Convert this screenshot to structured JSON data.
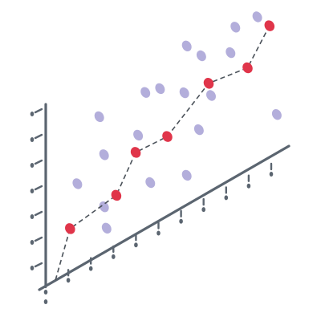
{
  "colors": {
    "axis": "#5b6570",
    "trend": "#e0354a",
    "scatter": "#b3aedb",
    "dash": "#4b525a"
  },
  "chart_data": {
    "type": "scatter",
    "title": "",
    "xlabel": "",
    "ylabel": "",
    "xlim": [
      0,
      10
    ],
    "ylim": [
      0,
      8
    ],
    "grid": false,
    "legend": "none",
    "series": [
      {
        "style": "scatter",
        "points": [
          [
            1.3,
            3.7
          ],
          [
            2.4,
            4.3
          ],
          [
            2.4,
            2.0
          ],
          [
            2.5,
            1.0
          ],
          [
            2.2,
            6.1
          ],
          [
            3.8,
            4.3
          ],
          [
            4.3,
            1.9
          ],
          [
            4.7,
            5.8
          ],
          [
            4.1,
            6.0
          ],
          [
            5.8,
            1.3
          ],
          [
            5.7,
            5.0
          ],
          [
            6.3,
            3.0
          ],
          [
            6.4,
            6.2
          ],
          [
            5.8,
            7.0
          ],
          [
            6.8,
            4.2
          ],
          [
            7.6,
            5.6
          ],
          [
            7.8,
            6.6
          ],
          [
            8.7,
            6.5
          ],
          [
            8.5,
            7.7
          ],
          [
            9.5,
            1.7
          ]
        ]
      },
      {
        "style": "line-dashed-markers",
        "points": [
          [
            0.4,
            0.0
          ],
          [
            1.0,
            1.9
          ],
          [
            2.9,
            2.2
          ],
          [
            3.7,
            3.6
          ],
          [
            5.0,
            3.5
          ],
          [
            6.7,
            4.8
          ],
          [
            8.3,
            4.5
          ],
          [
            9.2,
            5.8
          ]
        ]
      }
    ],
    "x_ticks": 11,
    "y_ticks": 7
  }
}
